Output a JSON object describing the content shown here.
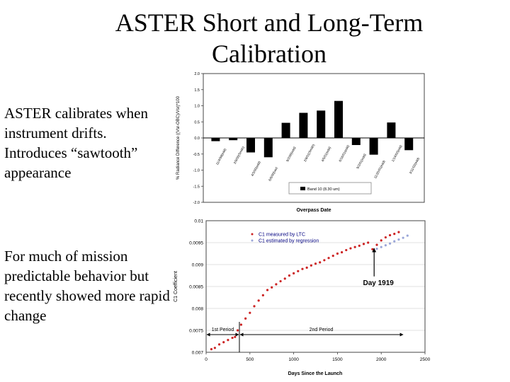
{
  "slide": {
    "title": "ASTER Short and Long-Term Calibration",
    "bullet1": "ASTER calibrates when instrument drifts. Introduces “sawtooth” appearance",
    "bullet2": "For much of mission predictable behavior but recently showed more rapid change"
  },
  "chart_data": [
    {
      "type": "bar",
      "ylabel": "% Radiance Difference ((Vsr-OBC)/Vsr)*100",
      "xlabel": "Overpass Date",
      "ylim": [
        -2.0,
        2.0
      ],
      "yticks": [
        "2.0",
        "1.5",
        "1.0",
        "0.5",
        "0.0",
        "-0.5",
        "-1.0",
        "-1.5",
        "-2.0"
      ],
      "categories": [
        "11/4/99(edd)",
        "2/8/00(Smith)",
        "4/3/00(edd)",
        "6/6/00(uw)",
        "9/2/00(edd)",
        "2/8/01(Smith)",
        "4/5/01(edd)",
        "6/16/01(edd)",
        "9/2/01(edd)",
        "11/20/01(edd)",
        "1/14/02(edd)",
        "3/11/02(edd)"
      ],
      "values": [
        -0.1,
        -0.07,
        -0.45,
        -0.6,
        0.47,
        0.78,
        0.85,
        1.15,
        -0.22,
        -0.52,
        0.48,
        -0.38
      ],
      "legend": "Band 10 (8.30 um)",
      "legend_position": "lower-right",
      "bar_color": "#000000",
      "grid": false
    },
    {
      "type": "scatter",
      "ylabel": "C1 Coefficient",
      "xlabel": "Days Since the Launch",
      "xlim": [
        0,
        2500
      ],
      "ylim": [
        0.007,
        0.01
      ],
      "xticks": [
        "0",
        "500",
        "1000",
        "1500",
        "2000",
        "2500"
      ],
      "yticks": [
        "0.01",
        "0.0095",
        "0.009",
        "0.0085",
        "0.008",
        "0.0075",
        "0.007"
      ],
      "series": [
        {
          "name": "C1 measured by LTC",
          "color": "#cc2222",
          "x": [
            60,
            100,
            150,
            200,
            250,
            300,
            330,
            360,
            400,
            450,
            500,
            550,
            600,
            650,
            700,
            750,
            800,
            850,
            900,
            950,
            1000,
            1050,
            1100,
            1150,
            1200,
            1250,
            1300,
            1350,
            1400,
            1450,
            1500,
            1550,
            1600,
            1650,
            1700,
            1750,
            1800,
            1850,
            1900,
            1950,
            2000,
            2050,
            2100,
            2150,
            2200
          ],
          "y": [
            0.00707,
            0.0071,
            0.00718,
            0.00723,
            0.00728,
            0.00733,
            0.00735,
            0.0075,
            0.00763,
            0.00777,
            0.0079,
            0.00805,
            0.00818,
            0.0083,
            0.00842,
            0.00848,
            0.00855,
            0.00862,
            0.00868,
            0.00875,
            0.0088,
            0.00885,
            0.0089,
            0.00893,
            0.00898,
            0.00902,
            0.00905,
            0.0091,
            0.00915,
            0.0092,
            0.00925,
            0.00928,
            0.00933,
            0.00937,
            0.0094,
            0.00943,
            0.00947,
            0.0095,
            0.00935,
            0.00945,
            0.00955,
            0.00962,
            0.00967,
            0.0097,
            0.00974
          ]
        },
        {
          "name": "C1 estimated by regression",
          "color": "#9aa6d8",
          "x": [
            1950,
            2000,
            2050,
            2100,
            2150,
            2200,
            2250,
            2300
          ],
          "y": [
            0.00936,
            0.0094,
            0.00944,
            0.00948,
            0.00953,
            0.00957,
            0.00961,
            0.00966
          ]
        }
      ],
      "annotations": [
        "Day 1919",
        "1st Period",
        "2nd Period"
      ],
      "periods": [
        {
          "label": "1st Period",
          "from": 0,
          "to": 380
        },
        {
          "label": "2nd Period",
          "from": 380,
          "to": 2250
        }
      ],
      "arrow_day": 1919,
      "legend_position": "top-right",
      "grid": true
    }
  ]
}
